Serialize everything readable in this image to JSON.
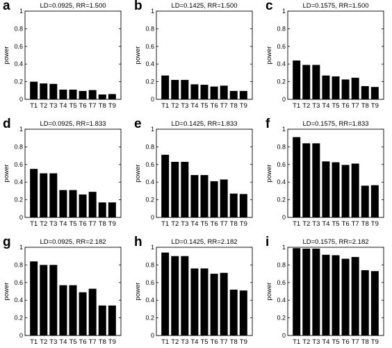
{
  "chart_data": [
    {
      "letter": "a",
      "type": "bar",
      "title": "LD=0.0925, RR=1.500",
      "ylabel": "power",
      "ylim": [
        0,
        1
      ],
      "yticks": [
        "0",
        "0.2",
        "0.4",
        "0.6",
        "0.8",
        "1"
      ],
      "categories": [
        "T1",
        "T2",
        "T3",
        "T4",
        "T5",
        "T6",
        "T7",
        "T8",
        "T9"
      ],
      "values": [
        0.2,
        0.18,
        0.175,
        0.11,
        0.11,
        0.095,
        0.105,
        0.055,
        0.06
      ]
    },
    {
      "letter": "b",
      "type": "bar",
      "title": "LD=0.1425, RR=1.500",
      "ylabel": "power",
      "ylim": [
        0,
        1
      ],
      "yticks": [
        "0",
        "0.2",
        "0.4",
        "0.6",
        "0.8",
        "1"
      ],
      "categories": [
        "T1",
        "T2",
        "T3",
        "T4",
        "T5",
        "T6",
        "T7",
        "T8",
        "T9"
      ],
      "values": [
        0.27,
        0.22,
        0.22,
        0.17,
        0.165,
        0.145,
        0.155,
        0.095,
        0.095
      ]
    },
    {
      "letter": "c",
      "type": "bar",
      "title": "LD=0.1575, RR=1.500",
      "ylabel": "power",
      "ylim": [
        0,
        1
      ],
      "yticks": [
        "0",
        "0.2",
        "0.4",
        "0.6",
        "0.8",
        "1"
      ],
      "categories": [
        "T1",
        "T2",
        "T3",
        "T4",
        "T5",
        "T6",
        "T7",
        "T8",
        "T9"
      ],
      "values": [
        0.44,
        0.39,
        0.39,
        0.27,
        0.26,
        0.225,
        0.245,
        0.15,
        0.14
      ]
    },
    {
      "letter": "d",
      "type": "bar",
      "title": "LD=0.0925, RR=1.833",
      "ylabel": "power",
      "ylim": [
        0,
        1
      ],
      "yticks": [
        "0",
        "0.2",
        "0.4",
        "0.6",
        "0.8",
        "1"
      ],
      "categories": [
        "T1",
        "T2",
        "T3",
        "T4",
        "T5",
        "T6",
        "T7",
        "T8",
        "T9"
      ],
      "values": [
        0.55,
        0.5,
        0.5,
        0.31,
        0.31,
        0.26,
        0.29,
        0.17,
        0.17
      ]
    },
    {
      "letter": "e",
      "type": "bar",
      "title": "LD=0.1425, RR=1.833",
      "ylabel": "power",
      "ylim": [
        0,
        1
      ],
      "yticks": [
        "0",
        "0.2",
        "0.4",
        "0.6",
        "0.8",
        "1"
      ],
      "categories": [
        "T1",
        "T2",
        "T3",
        "T4",
        "T5",
        "T6",
        "T7",
        "T8",
        "T9"
      ],
      "values": [
        0.71,
        0.63,
        0.63,
        0.48,
        0.48,
        0.41,
        0.43,
        0.27,
        0.265
      ]
    },
    {
      "letter": "f",
      "type": "bar",
      "title": "LD=0.1575, RR=1.833",
      "ylabel": "power",
      "ylim": [
        0,
        1
      ],
      "yticks": [
        "0",
        "0.2",
        "0.4",
        "0.6",
        "0.8",
        "1"
      ],
      "categories": [
        "T1",
        "T2",
        "T3",
        "T4",
        "T5",
        "T6",
        "T7",
        "T8",
        "T9"
      ],
      "values": [
        0.91,
        0.84,
        0.84,
        0.635,
        0.625,
        0.595,
        0.61,
        0.36,
        0.365
      ]
    },
    {
      "letter": "g",
      "type": "bar",
      "title": "LD=0.0925, RR=2.182",
      "ylabel": "power",
      "ylim": [
        0,
        1
      ],
      "yticks": [
        "0",
        "0.2",
        "0.4",
        "0.6",
        "0.8",
        "1"
      ],
      "categories": [
        "T1",
        "T2",
        "T3",
        "T4",
        "T5",
        "T6",
        "T7",
        "T8",
        "T9"
      ],
      "values": [
        0.84,
        0.8,
        0.8,
        0.57,
        0.57,
        0.49,
        0.53,
        0.34,
        0.34
      ]
    },
    {
      "letter": "h",
      "type": "bar",
      "title": "LD=0.1425, RR=2.182",
      "ylabel": "power",
      "ylim": [
        0,
        1
      ],
      "yticks": [
        "0",
        "0.2",
        "0.4",
        "0.6",
        "0.8",
        "1"
      ],
      "categories": [
        "T1",
        "T2",
        "T3",
        "T4",
        "T5",
        "T6",
        "T7",
        "T8",
        "T9"
      ],
      "values": [
        0.94,
        0.9,
        0.9,
        0.76,
        0.76,
        0.7,
        0.71,
        0.52,
        0.51
      ]
    },
    {
      "letter": "i",
      "type": "bar",
      "title": "LD=0.1575, RR=2.182",
      "ylabel": "power",
      "ylim": [
        0,
        1
      ],
      "yticks": [
        "0",
        "0.2",
        "0.4",
        "0.6",
        "0.8",
        "1"
      ],
      "categories": [
        "T1",
        "T2",
        "T3",
        "T4",
        "T5",
        "T6",
        "T7",
        "T8",
        "T9"
      ],
      "values": [
        0.99,
        0.985,
        0.985,
        0.915,
        0.91,
        0.87,
        0.89,
        0.74,
        0.73
      ]
    }
  ]
}
